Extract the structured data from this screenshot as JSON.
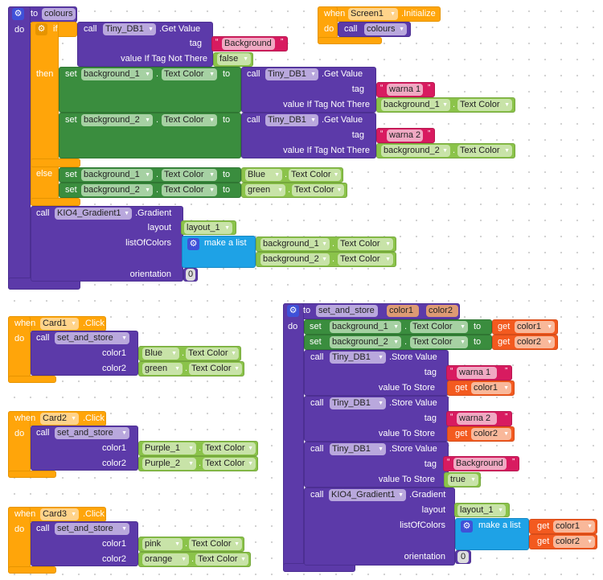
{
  "symbols": {
    "dot": "."
  },
  "procedures": {
    "colours": {
      "keyword_to": "to",
      "name": "colours",
      "keyword_do": "do",
      "if": {
        "keyword_if": "if",
        "keyword_then": "then",
        "keyword_else": "else",
        "condition": {
          "keyword_call": "call",
          "component": "Tiny_DB1",
          "method": ".Get Value",
          "tag_label": "tag",
          "tag_value": "Background",
          "default_label": "value If Tag Not There",
          "default_value": "false"
        },
        "then": [
          {
            "keyword_set": "set",
            "component": "background_1",
            "property": "Text Color",
            "keyword_to": "to",
            "call": {
              "keyword_call": "call",
              "component": "Tiny_DB1",
              "method": ".Get Value",
              "tag_label": "tag",
              "tag_value": "warna 1",
              "default_label": "value If Tag Not There",
              "default_component": "background_1",
              "default_property": "Text Color"
            }
          },
          {
            "keyword_set": "set",
            "component": "background_2",
            "property": "Text Color",
            "keyword_to": "to",
            "call": {
              "keyword_call": "call",
              "component": "Tiny_DB1",
              "method": ".Get Value",
              "tag_label": "tag",
              "tag_value": "warna 2",
              "default_label": "value If Tag Not There",
              "default_component": "background_2",
              "default_property": "Text Color"
            }
          }
        ],
        "else": [
          {
            "keyword_set": "set",
            "component": "background_1",
            "property": "Text Color",
            "keyword_to": "to",
            "value_component": "Blue",
            "value_property": "Text Color"
          },
          {
            "keyword_set": "set",
            "component": "background_2",
            "property": "Text Color",
            "keyword_to": "to",
            "value_component": "green",
            "value_property": "Text Color"
          }
        ]
      },
      "gradient": {
        "keyword_call": "call",
        "component": "KIO4_Gradient1",
        "method": ".Gradient",
        "layout_label": "layout",
        "layout_value": "layout_1",
        "colors_label": "listOfColors",
        "make_list": "make a list",
        "items": [
          {
            "component": "background_1",
            "property": "Text Color"
          },
          {
            "component": "background_2",
            "property": "Text Color"
          }
        ],
        "orientation_label": "orientation",
        "orientation_value": "0"
      }
    },
    "set_and_store": {
      "keyword_to": "to",
      "name": "set_and_store",
      "params": [
        "color1",
        "color2"
      ],
      "keyword_do": "do",
      "sets": [
        {
          "keyword_set": "set",
          "component": "background_1",
          "property": "Text Color",
          "keyword_to": "to",
          "keyword_get": "get",
          "variable": "color1"
        },
        {
          "keyword_set": "set",
          "component": "background_2",
          "property": "Text Color",
          "keyword_to": "to",
          "keyword_get": "get",
          "variable": "color2"
        }
      ],
      "stores": [
        {
          "keyword_call": "call",
          "component": "Tiny_DB1",
          "method": ".Store Value",
          "tag_label": "tag",
          "tag_value": "warna 1",
          "value_label": "value To Store",
          "keyword_get": "get",
          "value": "color1"
        },
        {
          "keyword_call": "call",
          "component": "Tiny_DB1",
          "method": ".Store Value",
          "tag_label": "tag",
          "tag_value": "warna 2",
          "value_label": "value To Store",
          "keyword_get": "get",
          "value": "color2"
        },
        {
          "keyword_call": "call",
          "component": "Tiny_DB1",
          "method": ".Store Value",
          "tag_label": "tag",
          "tag_value": "Background",
          "value_label": "value To Store",
          "value": "true"
        }
      ],
      "gradient": {
        "keyword_call": "call",
        "component": "KIO4_Gradient1",
        "method": ".Gradient",
        "layout_label": "layout",
        "layout_value": "layout_1",
        "colors_label": "listOfColors",
        "make_list": "make a list",
        "items": [
          {
            "keyword_get": "get",
            "variable": "color1"
          },
          {
            "keyword_get": "get",
            "variable": "color2"
          }
        ],
        "orientation_label": "orientation",
        "orientation_value": "0"
      }
    }
  },
  "events": {
    "screen_init": {
      "keyword_when": "when",
      "component": "Screen1",
      "event": ".Initialize",
      "keyword_do": "do",
      "keyword_call": "call",
      "procedure": "colours"
    },
    "cards": [
      {
        "keyword_when": "when",
        "component": "Card1",
        "event": ".Click",
        "keyword_do": "do",
        "keyword_call": "call",
        "procedure": "set_and_store",
        "color1_label": "color1",
        "color1_component": "Blue",
        "color1_property": "Text Color",
        "color2_label": "color2",
        "color2_component": "green",
        "color2_property": "Text Color"
      },
      {
        "keyword_when": "when",
        "component": "Card2",
        "event": ".Click",
        "keyword_do": "do",
        "keyword_call": "call",
        "procedure": "set_and_store",
        "color1_label": "color1",
        "color1_component": "Purple_1",
        "color1_property": "Text Color",
        "color2_label": "color2",
        "color2_component": "Purple_2",
        "color2_property": "Text Color"
      },
      {
        "keyword_when": "when",
        "component": "Card3",
        "event": ".Click",
        "keyword_do": "do",
        "keyword_call": "call",
        "procedure": "set_and_store",
        "color1_label": "color1",
        "color1_component": "pink",
        "color1_property": "Text Color",
        "color2_label": "color2",
        "color2_component": "orange",
        "color2_property": "Text Color"
      }
    ]
  }
}
